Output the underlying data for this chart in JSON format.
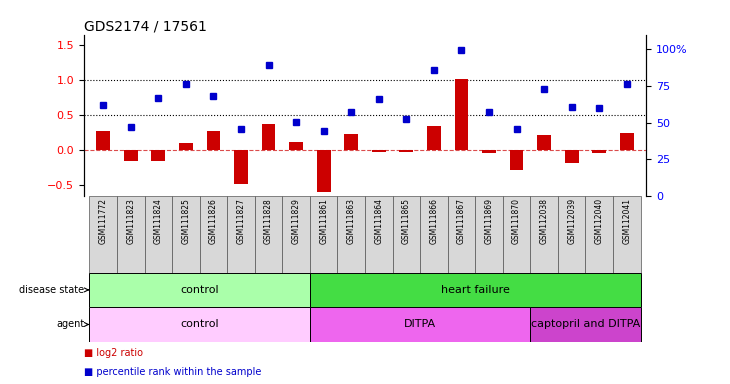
{
  "title": "GDS2174 / 17561",
  "samples": [
    "GSM111772",
    "GSM111823",
    "GSM111824",
    "GSM111825",
    "GSM111826",
    "GSM111827",
    "GSM111828",
    "GSM111829",
    "GSM111861",
    "GSM111863",
    "GSM111864",
    "GSM111865",
    "GSM111866",
    "GSM111867",
    "GSM111869",
    "GSM111870",
    "GSM112038",
    "GSM112039",
    "GSM112040",
    "GSM112041"
  ],
  "log2_ratio": [
    0.28,
    -0.15,
    -0.16,
    0.1,
    0.27,
    -0.48,
    0.38,
    0.12,
    -0.6,
    0.23,
    -0.02,
    -0.02,
    0.35,
    1.02,
    -0.04,
    -0.28,
    0.22,
    -0.18,
    -0.04,
    0.25
  ],
  "percentile": [
    0.65,
    0.33,
    0.75,
    0.95,
    0.78,
    0.3,
    1.22,
    0.4,
    0.28,
    0.55,
    0.73,
    0.45,
    1.15,
    1.43,
    0.55,
    0.3,
    0.88,
    0.62,
    0.6,
    0.95
  ],
  "disease_state_groups": [
    {
      "label": "control",
      "start": 0,
      "end": 7,
      "color": "#AAFFAA"
    },
    {
      "label": "heart failure",
      "start": 8,
      "end": 19,
      "color": "#44DD44"
    }
  ],
  "agent_groups": [
    {
      "label": "control",
      "start": 0,
      "end": 7,
      "color": "#FFCCFF"
    },
    {
      "label": "DITPA",
      "start": 8,
      "end": 15,
      "color": "#EE66EE"
    },
    {
      "label": "captopril and DITPA",
      "start": 16,
      "end": 19,
      "color": "#CC44CC"
    }
  ],
  "bar_color": "#CC0000",
  "blue_color": "#0000CC",
  "ylim_left": [
    -0.65,
    1.65
  ],
  "ylim_right": [
    0,
    110
  ],
  "yticks_left": [
    -0.5,
    0.0,
    0.5,
    1.0,
    1.5
  ],
  "yticks_right": [
    0,
    25,
    50,
    75,
    100
  ],
  "ytick_right_labels": [
    "0",
    "25",
    "50",
    "75",
    "100%"
  ],
  "hline_dotted": [
    0.5,
    1.0
  ],
  "hline_dashed_color": "#CC0000",
  "legend_red_label": "log2 ratio",
  "legend_blue_label": "percentile rank within the sample",
  "disease_state_label": "disease state",
  "agent_label": "agent"
}
